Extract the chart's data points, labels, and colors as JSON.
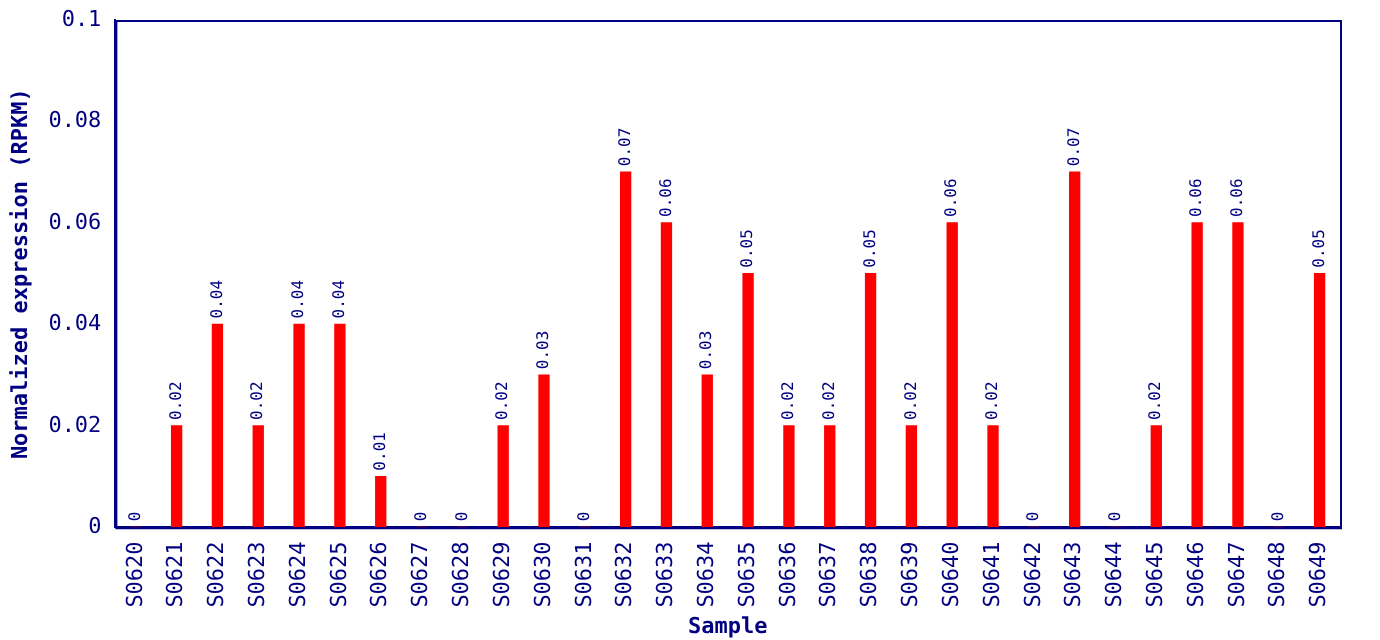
{
  "chart_data": {
    "type": "bar",
    "xlabel": "Sample",
    "ylabel": "Normalized expression (RPKM)",
    "categories": [
      "S0620",
      "S0621",
      "S0622",
      "S0623",
      "S0624",
      "S0625",
      "S0626",
      "S0627",
      "S0628",
      "S0629",
      "S0630",
      "S0631",
      "S0632",
      "S0633",
      "S0634",
      "S0635",
      "S0636",
      "S0637",
      "S0638",
      "S0639",
      "S0640",
      "S0641",
      "S0642",
      "S0643",
      "S0644",
      "S0645",
      "S0646",
      "S0647",
      "S0648",
      "S0649"
    ],
    "values": [
      0,
      0.02,
      0.04,
      0.02,
      0.04,
      0.04,
      0.01,
      0,
      0,
      0.02,
      0.03,
      0,
      0.07,
      0.06,
      0.03,
      0.05,
      0.02,
      0.02,
      0.05,
      0.02,
      0.06,
      0.02,
      0,
      0.07,
      0,
      0.02,
      0.06,
      0.06,
      0,
      0.05
    ],
    "color": "#ff0000",
    "ylim": [
      0,
      0.1
    ],
    "yticks": [
      0,
      0.02,
      0.04,
      0.06,
      0.08,
      0.1
    ],
    "grid": false,
    "legend": false,
    "data_labels": true
  }
}
